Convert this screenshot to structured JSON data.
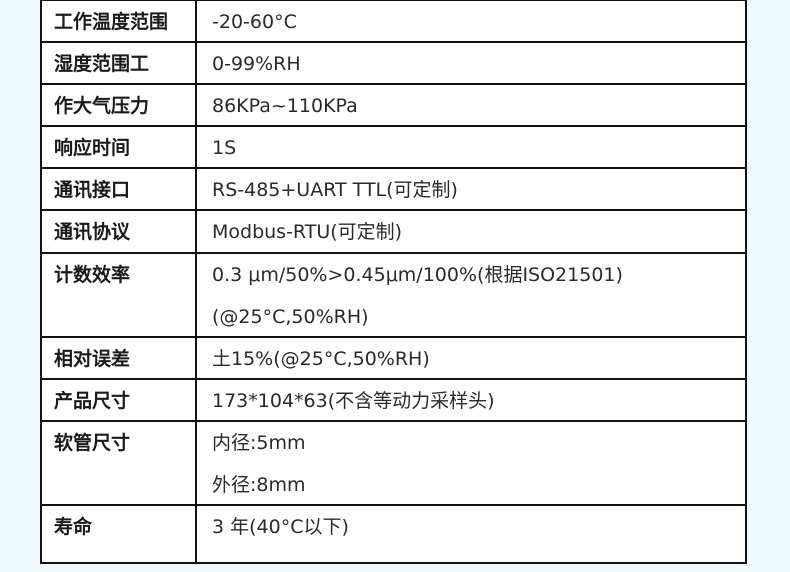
{
  "rows": [
    {
      "label": "工作温度范围",
      "values": [
        "-20-60°C"
      ]
    },
    {
      "label": "湿度范围工",
      "values": [
        "0-99%RH"
      ]
    },
    {
      "label": "作大气压力",
      "values": [
        "86KPa~110KPa"
      ]
    },
    {
      "label": "响应时间",
      "values": [
        "1S"
      ]
    },
    {
      "label": "通讯接口",
      "values": [
        "RS-485+UART TTL(可定制)"
      ]
    },
    {
      "label": "通讯协议",
      "values": [
        "Modbus-RTU(可定制)"
      ]
    },
    {
      "label": "计数效率",
      "values": [
        "0.3 μm/50%>0.45μm/100%(根据ISO21501)",
        "(@25°C,50%RH)"
      ]
    },
    {
      "label": "相对误差",
      "values": [
        "土15%(@25°C,50%RH)"
      ]
    },
    {
      "label": "产品尺寸",
      "values": [
        "173*104*63(不含等动力采样头)"
      ]
    },
    {
      "label": "软管尺寸",
      "values": [
        "内径:5mm",
        "外径:8mm"
      ]
    },
    {
      "label": "寿命",
      "values": [
        "3 年(40°C以下)"
      ]
    }
  ]
}
